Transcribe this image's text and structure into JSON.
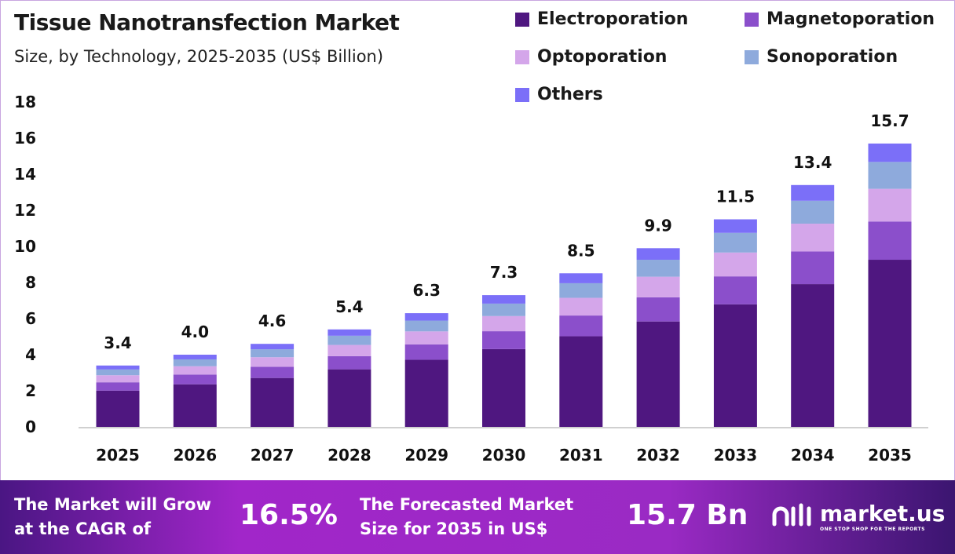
{
  "chart_data": {
    "type": "bar",
    "stacked": true,
    "title": "Tissue Nanotransfection Market",
    "subtitle": "Size, by Technology, 2025-2035 (US$ Billion)",
    "categories": [
      "2025",
      "2026",
      "2027",
      "2028",
      "2029",
      "2030",
      "2031",
      "2032",
      "2033",
      "2034",
      "2035"
    ],
    "totals": [
      "3.4",
      "4.0",
      "4.6",
      "5.4",
      "6.3",
      "7.3",
      "8.5",
      "9.9",
      "11.5",
      "13.4",
      "15.7"
    ],
    "ylim": [
      0,
      18
    ],
    "yticks": [
      "0",
      "2",
      "4",
      "6",
      "8",
      "10",
      "12",
      "14",
      "16",
      "18"
    ],
    "grid": false,
    "legend_position": "top-right",
    "series": [
      {
        "name": "Electroporation",
        "color": "#4f1780",
        "values": [
          2.01,
          2.36,
          2.71,
          3.19,
          3.72,
          4.31,
          5.02,
          5.84,
          6.79,
          7.91,
          9.26
        ]
      },
      {
        "name": "Magnetoporation",
        "color": "#8b4fcb",
        "values": [
          0.46,
          0.54,
          0.62,
          0.73,
          0.85,
          0.99,
          1.15,
          1.34,
          1.55,
          1.81,
          2.12
        ]
      },
      {
        "name": "Optoporation",
        "color": "#d4a6ea",
        "values": [
          0.39,
          0.46,
          0.53,
          0.62,
          0.72,
          0.84,
          0.98,
          1.14,
          1.32,
          1.54,
          1.81
        ]
      },
      {
        "name": "Sonoporation",
        "color": "#8eaadc",
        "values": [
          0.32,
          0.38,
          0.44,
          0.51,
          0.6,
          0.69,
          0.81,
          0.94,
          1.09,
          1.27,
          1.49
        ]
      },
      {
        "name": "Others",
        "color": "#7b6ff8",
        "values": [
          0.22,
          0.26,
          0.3,
          0.35,
          0.41,
          0.47,
          0.55,
          0.64,
          0.75,
          0.87,
          1.02
        ]
      }
    ]
  },
  "footer": {
    "cagr_label": "The Market will Grow at the CAGR of",
    "cagr_value": "16.5%",
    "size_label": "The Forecasted Market Size for 2035 in US$",
    "size_value": "15.7 Bn",
    "logo_text": "market.us",
    "logo_tagline": "ONE STOP SHOP FOR THE REPORTS"
  }
}
